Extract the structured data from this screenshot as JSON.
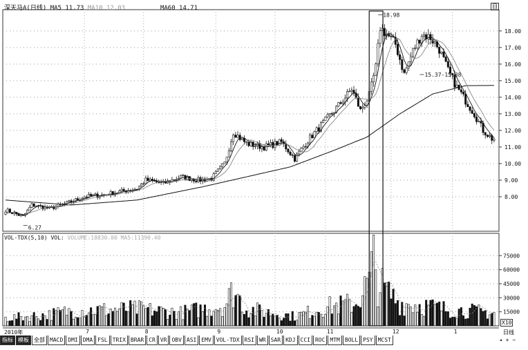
{
  "price_legend": {
    "stock_name": "深天马A(日线)",
    "ma5_label": "MA5",
    "ma5_value": "11.73",
    "ma10_label": "MA10",
    "ma10_value": "12.03",
    "ma60_label": "MA60",
    "ma60_value": "14.71"
  },
  "volume_legend": {
    "title": "VOL-TDX(5,10)",
    "vol_label": "VOL:",
    "vol_value": "VOLUME:18830.00 MA5:11390.40"
  },
  "corner_badge": "日",
  "period_label": "日线",
  "x10_label": "X10",
  "year_label": "2010年",
  "tabs": [
    "指标",
    "模板",
    "全部",
    "MACD",
    "DMI",
    "DMA",
    "FSL",
    "TRIX",
    "BRAR",
    "CR",
    "VR",
    "OBV",
    "ASI",
    "EMV",
    "VOL-TDX",
    "RSI",
    "WR",
    "SAR",
    "KDJ",
    "CCI",
    "ROC",
    "MTM",
    "BOLL",
    "PSY",
    "MCST"
  ],
  "chart_data": [
    {
      "type": "candlestick",
      "title": "深天马A(日线)",
      "yticks": [
        "8.00",
        "9.00",
        "10.00",
        "11.00",
        "12.00",
        "13.00",
        "14.00",
        "15.00",
        "16.00",
        "17.00",
        "18.00"
      ],
      "ylim": [
        6.0,
        19.2
      ],
      "annotations": [
        {
          "text": "18.98",
          "value": 18.98
        },
        {
          "text": "15.37-15.38",
          "value": 15.37
        },
        {
          "text": "6.27",
          "value": 6.27
        }
      ],
      "month_labels": [
        "7",
        "8",
        "9",
        "10",
        "11",
        "12",
        "1"
      ],
      "anchors": [
        [
          0,
          7.2
        ],
        [
          8,
          6.8
        ],
        [
          12,
          7.5
        ],
        [
          20,
          7.3
        ],
        [
          28,
          7.6
        ],
        [
          36,
          8.0
        ],
        [
          44,
          8.1
        ],
        [
          52,
          8.3
        ],
        [
          60,
          8.5
        ],
        [
          64,
          9.0
        ],
        [
          72,
          8.8
        ],
        [
          80,
          9.2
        ],
        [
          88,
          9.0
        ],
        [
          94,
          9.1
        ],
        [
          100,
          10.0
        ],
        [
          104,
          11.9
        ],
        [
          110,
          11.2
        ],
        [
          118,
          11.0
        ],
        [
          126,
          11.3
        ],
        [
          132,
          10.3
        ],
        [
          138,
          11.4
        ],
        [
          146,
          12.6
        ],
        [
          152,
          13.5
        ],
        [
          158,
          14.5
        ],
        [
          162,
          13.2
        ],
        [
          166,
          14.1
        ],
        [
          169,
          15.8
        ],
        [
          171,
          18.2
        ],
        [
          174,
          17.8
        ],
        [
          178,
          17.2
        ],
        [
          182,
          15.4
        ],
        [
          186,
          16.8
        ],
        [
          190,
          17.8
        ],
        [
          194,
          17.6
        ],
        [
          198,
          16.9
        ],
        [
          202,
          15.6
        ],
        [
          206,
          14.6
        ],
        [
          210,
          13.8
        ],
        [
          214,
          13.0
        ],
        [
          218,
          12.0
        ],
        [
          222,
          11.5
        ]
      ],
      "ma60": [
        [
          0,
          7.8
        ],
        [
          30,
          7.5
        ],
        [
          60,
          7.8
        ],
        [
          90,
          8.6
        ],
        [
          110,
          9.2
        ],
        [
          130,
          9.8
        ],
        [
          150,
          10.8
        ],
        [
          165,
          11.6
        ],
        [
          180,
          13.0
        ],
        [
          195,
          14.2
        ],
        [
          210,
          14.7
        ],
        [
          222,
          14.71
        ]
      ],
      "highlight_box": {
        "low": 10.9,
        "high": 19.2
      }
    },
    {
      "type": "bar",
      "title": "VOL-TDX(5,10)",
      "yticks": [
        "15000",
        "30000",
        "45000",
        "60000",
        "75000"
      ],
      "ylim": [
        0,
        90000
      ],
      "anchors": [
        [
          0,
          8000
        ],
        [
          20,
          12000
        ],
        [
          30,
          16000
        ],
        [
          60,
          18000
        ],
        [
          80,
          14000
        ],
        [
          100,
          22000
        ],
        [
          104,
          38000
        ],
        [
          110,
          18000
        ],
        [
          132,
          10000
        ],
        [
          146,
          20000
        ],
        [
          160,
          24000
        ],
        [
          166,
          48000
        ],
        [
          168,
          70000
        ],
        [
          170,
          45000
        ],
        [
          180,
          24000
        ],
        [
          190,
          22000
        ],
        [
          200,
          18000
        ],
        [
          210,
          16000
        ],
        [
          222,
          14000
        ]
      ]
    }
  ]
}
